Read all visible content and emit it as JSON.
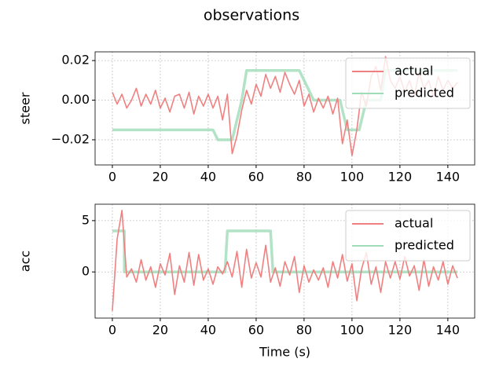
{
  "title": "observations",
  "chart_data": [
    {
      "type": "line",
      "ylabel": "steer",
      "xlim": [
        -7.2,
        151.2
      ],
      "ylim": [
        -0.0327,
        0.0244
      ],
      "xticks": [
        0,
        20,
        40,
        60,
        80,
        100,
        120,
        140
      ],
      "yticks": [
        {
          "value": 0.02,
          "label": "0.02"
        },
        {
          "value": 0,
          "label": "0.00"
        },
        {
          "value": -0.02,
          "label": "−0.02"
        }
      ],
      "grid": true,
      "legend": "upper right",
      "series": [
        {
          "name": "actual",
          "color": "#f08080",
          "x": [
            0,
            2,
            4,
            6,
            8,
            10,
            12,
            14,
            16,
            18,
            20,
            22,
            24,
            26,
            28,
            30,
            32,
            34,
            36,
            38,
            40,
            42,
            44,
            46,
            48,
            50,
            52,
            54,
            56,
            58,
            60,
            62,
            64,
            66,
            68,
            70,
            72,
            74,
            76,
            78,
            80,
            82,
            84,
            86,
            88,
            90,
            92,
            94,
            96,
            98,
            100,
            102,
            104,
            106,
            108,
            110,
            112,
            114,
            116,
            118,
            120,
            122,
            124,
            126,
            128,
            130,
            132,
            134,
            136,
            138,
            140,
            142,
            144
          ],
          "values": [
            0.004,
            -0.002,
            0.003,
            -0.004,
            0.0,
            0.006,
            -0.003,
            0.003,
            -0.002,
            0.005,
            -0.004,
            0.001,
            -0.006,
            0.002,
            0.003,
            -0.004,
            0.004,
            -0.007,
            0.002,
            -0.003,
            0.003,
            -0.004,
            0.002,
            -0.01,
            0.003,
            -0.027,
            -0.018,
            -0.005,
            0.005,
            -0.002,
            0.008,
            0.002,
            0.013,
            0.006,
            0.012,
            0.004,
            0.014,
            0.008,
            0.003,
            0.01,
            -0.003,
            0.003,
            -0.006,
            0.001,
            -0.004,
            0.002,
            -0.007,
            0.001,
            -0.022,
            -0.01,
            -0.028,
            -0.015,
            0.004,
            -0.003,
            0.012,
            0.017,
            0.005,
            0.022,
            0.01,
            0.006,
            0.012,
            0.004,
            0.01,
            0.002,
            0.014,
            0.006,
            0.01,
            0.002,
            0.012,
            0.005,
            0.01,
            0.006,
            0.009
          ]
        },
        {
          "name": "predicted",
          "color": "#9fdcb8",
          "x": [
            0,
            42,
            44,
            50,
            54,
            56,
            78,
            84,
            95,
            98,
            103,
            106,
            112,
            114,
            144
          ],
          "values": [
            -0.015,
            -0.015,
            -0.02,
            -0.02,
            0,
            0.015,
            0.015,
            0,
            0,
            -0.015,
            -0.015,
            0,
            0,
            0.015,
            0.015
          ]
        }
      ]
    },
    {
      "type": "line",
      "ylabel": "acc",
      "xlabel": "Time (s)",
      "xlim": [
        -7.2,
        151.2
      ],
      "ylim": [
        -4.5,
        6.6
      ],
      "xticks": [
        0,
        20,
        40,
        60,
        80,
        100,
        120,
        140
      ],
      "yticks": [
        5,
        0
      ],
      "grid": true,
      "legend": "upper right",
      "series": [
        {
          "name": "actual",
          "color": "#f08080",
          "x": [
            0,
            2,
            4,
            6,
            8,
            10,
            12,
            14,
            16,
            18,
            20,
            22,
            24,
            26,
            28,
            30,
            32,
            34,
            36,
            38,
            40,
            42,
            44,
            46,
            48,
            50,
            52,
            54,
            56,
            58,
            60,
            62,
            64,
            66,
            68,
            70,
            72,
            74,
            76,
            78,
            80,
            82,
            84,
            86,
            88,
            90,
            92,
            94,
            96,
            98,
            100,
            102,
            104,
            106,
            108,
            110,
            112,
            114,
            116,
            118,
            120,
            122,
            124,
            126,
            128,
            130,
            132,
            134,
            136,
            138,
            140,
            142,
            144
          ],
          "values": [
            -3.8,
            3.2,
            6.0,
            -0.5,
            0.3,
            -1.0,
            1.2,
            -0.8,
            0.5,
            -1.5,
            0.8,
            -0.3,
            1.8,
            -2.2,
            0.6,
            -1.0,
            1.9,
            -1.3,
            1.7,
            -0.8,
            0.3,
            -1.2,
            0.5,
            -0.2,
            1.0,
            -0.5,
            2.0,
            -1.5,
            2.2,
            -0.6,
            0.9,
            -0.5,
            2.6,
            -1.0,
            0.4,
            -1.4,
            1.0,
            -0.3,
            1.5,
            -2.0,
            0.6,
            -1.0,
            0.2,
            -0.8,
            0.4,
            -1.5,
            1.0,
            -0.6,
            1.7,
            -0.9,
            0.8,
            -2.8,
            0.3,
            1.9,
            -1.2,
            0.5,
            -2.0,
            1.0,
            -0.6,
            1.0,
            -0.7,
            1.5,
            -0.4,
            0.6,
            -1.8,
            1.2,
            -1.4,
            0.5,
            -0.8,
            1.0,
            -1.2,
            0.6,
            -0.6
          ]
        },
        {
          "name": "predicted",
          "color": "#9fdcb8",
          "x": [
            0,
            5,
            5,
            47,
            48,
            66,
            67,
            144
          ],
          "values": [
            4,
            4,
            0,
            0,
            4,
            4,
            0,
            0
          ]
        }
      ]
    }
  ]
}
